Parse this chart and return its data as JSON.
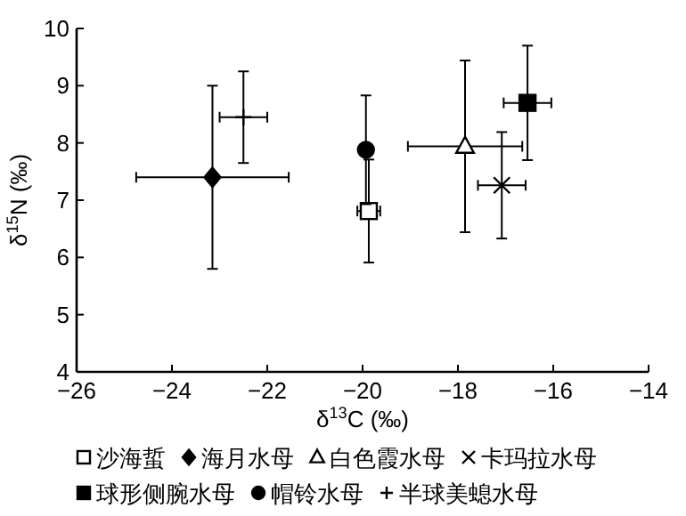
{
  "chart_data": {
    "type": "scatter",
    "xlabel": "δ$^{13}$C (‰)",
    "ylabel": "δ$^{15}$N (‰)",
    "xlim": [
      -26,
      -14
    ],
    "ylim": [
      4,
      10
    ],
    "xticks": [
      -26,
      -24,
      -22,
      -20,
      -18,
      -16,
      -14
    ],
    "yticks": [
      4,
      5,
      6,
      7,
      8,
      9,
      10
    ],
    "grid": false,
    "legend": "bottom",
    "series": [
      {
        "name": "沙海蜇",
        "color": "#ffffff",
        "marker": "square",
        "x": [
          -19.87
        ],
        "values": [
          6.81
        ],
        "errors": [
          0.9
        ],
        "xerrors": [
          0.24
        ]
      },
      {
        "name": "海月水母",
        "color": "#000000",
        "marker": "diamond",
        "x": [
          -23.15
        ],
        "values": [
          7.4
        ],
        "errors": [
          1.6
        ],
        "xerrors": [
          1.6
        ]
      },
      {
        "name": "白色霞水母",
        "color": "#ffffff",
        "marker": "triangle",
        "x": [
          -17.85
        ],
        "values": [
          7.94
        ],
        "errors": [
          1.5
        ],
        "xerrors": [
          1.2
        ]
      },
      {
        "name": "卡玛拉水母",
        "color": "#000000",
        "marker": "cross",
        "x": [
          -17.08
        ],
        "values": [
          7.26
        ],
        "errors": [
          0.93
        ],
        "xerrors": [
          0.5
        ]
      },
      {
        "name": "球形侧腕水母",
        "color": "#000000",
        "marker": "square",
        "x": [
          -16.54
        ],
        "values": [
          8.7
        ],
        "errors": [
          1.0
        ],
        "xerrors": [
          0.5
        ]
      },
      {
        "name": "帽铃水母",
        "color": "#000000",
        "marker": "circle",
        "x": [
          -19.93
        ],
        "values": [
          7.88
        ],
        "errors": [
          0.95
        ],
        "xerrors": [
          null
        ]
      },
      {
        "name": "半球美螅水母",
        "color": "#000000",
        "x": [
          -22.5
        ],
        "values": [
          8.45
        ],
        "errors": [
          0.8
        ],
        "xerrors": [
          0.5
        ]
      }
    ]
  }
}
